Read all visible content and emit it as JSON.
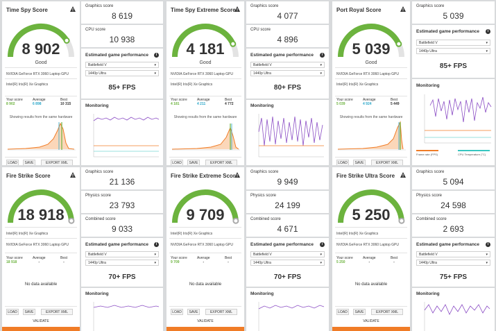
{
  "colors": {
    "accent_green": "#6cb33e",
    "accent_orange": "#f07c27",
    "accent_blue": "#2aa7c9",
    "purple": "#8a4cc4",
    "teal": "#37c6c0"
  },
  "rows": [
    {
      "tests": [
        {
          "title": "Time Spy Score",
          "score": "8 902",
          "rating": "Good",
          "hardware": [
            "NVIDIA GeForce RTX 3060 Laptop GPU",
            "Intel(R) Iris(R) Xe Graphics"
          ],
          "labels": {
            "your": "Your score",
            "average": "Average",
            "best": "Best"
          },
          "your_score": "8 902",
          "average": "6 898",
          "best": "10 315",
          "showing": "Showing results from the same hardware",
          "gauge_fraction": 0.82,
          "subs": [
            {
              "label": "Graphics score",
              "value": "8 619"
            },
            {
              "label": "CPU score",
              "value": "10 938"
            }
          ],
          "egp": {
            "title": "Estimated game performance",
            "game": "Battlefield V",
            "res": "1440p Ultra",
            "fps": "85+ FPS"
          },
          "monitoring": "Monitoring"
        },
        {
          "title": "Time Spy Extreme Score",
          "score": "4 181",
          "rating": "Good",
          "hardware": [
            "NVIDIA GeForce RTX 3060 Laptop GPU",
            "Intel(R) Iris(R) Xe Graphics"
          ],
          "labels": {
            "your": "Your score",
            "average": "Average",
            "best": "Best"
          },
          "your_score": "4 181",
          "average": "4 211",
          "best": "4 772",
          "showing": "Showing results from the same hardware",
          "gauge_fraction": 0.86,
          "subs": [
            {
              "label": "Graphics score",
              "value": "4 077"
            },
            {
              "label": "CPU score",
              "value": "4 896"
            }
          ],
          "egp": {
            "title": "Estimated game performance",
            "game": "Battlefield V",
            "res": "1440p Ultra",
            "fps": "80+ FPS"
          },
          "monitoring": "Monitoring"
        },
        {
          "title": "Port Royal Score",
          "score": "5 039",
          "rating": "Good",
          "hardware": [
            "NVIDIA GeForce RTX 3060 Laptop GPU",
            "Intel(R) Iris(R) Xe Graphics"
          ],
          "labels": {
            "your": "Your score",
            "average": "Average",
            "best": "Best"
          },
          "your_score": "5 039",
          "average": "4 924",
          "best": "5 449",
          "showing": "Showing results from the same hardware",
          "gauge_fraction": 0.86,
          "subs": [
            {
              "label": "Graphics score",
              "value": "5 039"
            }
          ],
          "egp": {
            "title": "Estimated game performance",
            "game": "Battlefield V",
            "res": "1440p Ultra",
            "fps": "85+ FPS"
          },
          "monitoring": "Monitoring",
          "legend": [
            "Frame rate (FPS)",
            "CPU Temperature (°C)"
          ]
        }
      ]
    },
    {
      "tests": [
        {
          "title": "Fire Strike Score",
          "score": "18 918",
          "hardware": [
            "Intel(R) Iris(R) Xe Graphics",
            "NVIDIA GeForce RTX 3060 Laptop GPU"
          ],
          "labels": {
            "your": "Your score",
            "average": "Average",
            "best": "Best"
          },
          "your_score": "18 918",
          "average": "-",
          "best": "-",
          "nodata": "No data available",
          "gauge_fraction": 0.98,
          "subs": [
            {
              "label": "Graphics score",
              "value": "21 136"
            },
            {
              "label": "Physics score",
              "value": "23 793"
            },
            {
              "label": "Combined score",
              "value": "9 033"
            }
          ],
          "egp": {
            "title": "Estimated game performance",
            "game": "Battlefield V",
            "res": "1440p Ultra",
            "fps": "70+ FPS"
          },
          "monitoring": "Monitoring"
        },
        {
          "title": "Fire Strike Extreme Score",
          "score": "9 709",
          "hardware": [
            "Intel(R) Iris(R) Xe Graphics",
            "NVIDIA GeForce RTX 3060 Laptop GPU"
          ],
          "labels": {
            "your": "Your score",
            "average": "Average",
            "best": "Best"
          },
          "your_score": "9 709",
          "average": "-",
          "best": "-",
          "nodata": "No data available",
          "gauge_fraction": 0.98,
          "subs": [
            {
              "label": "Graphics score",
              "value": "9 949"
            },
            {
              "label": "Physics score",
              "value": "24 199"
            },
            {
              "label": "Combined score",
              "value": "4 671"
            }
          ],
          "egp": {
            "title": "Estimated game performance",
            "game": "Battlefield V",
            "res": "1440p Ultra",
            "fps": "70+ FPS"
          },
          "monitoring": "Monitoring"
        },
        {
          "title": "Fire Strike Ultra Score",
          "score": "5 250",
          "hardware": [
            "Intel(R) Iris(R) Xe Graphics",
            "NVIDIA GeForce RTX 3060 Laptop GPU"
          ],
          "labels": {
            "your": "Your score",
            "average": "Average",
            "best": "Best"
          },
          "your_score": "5 250",
          "average": "-",
          "best": "-",
          "nodata": "No data available",
          "gauge_fraction": 0.98,
          "subs": [
            {
              "label": "Graphics score",
              "value": "5 094"
            },
            {
              "label": "Physics score",
              "value": "24 598"
            },
            {
              "label": "Combined score",
              "value": "2 693"
            }
          ],
          "egp": {
            "title": "Estimated game performance",
            "game": "Battlefield V",
            "res": "1440p Ultra",
            "fps": "75+ FPS"
          },
          "monitoring": "Monitoring"
        }
      ]
    }
  ],
  "buttons": {
    "load": "LOAD",
    "save": "SAVE",
    "export": "EXPORT XML",
    "validate": "VALIDATE"
  }
}
